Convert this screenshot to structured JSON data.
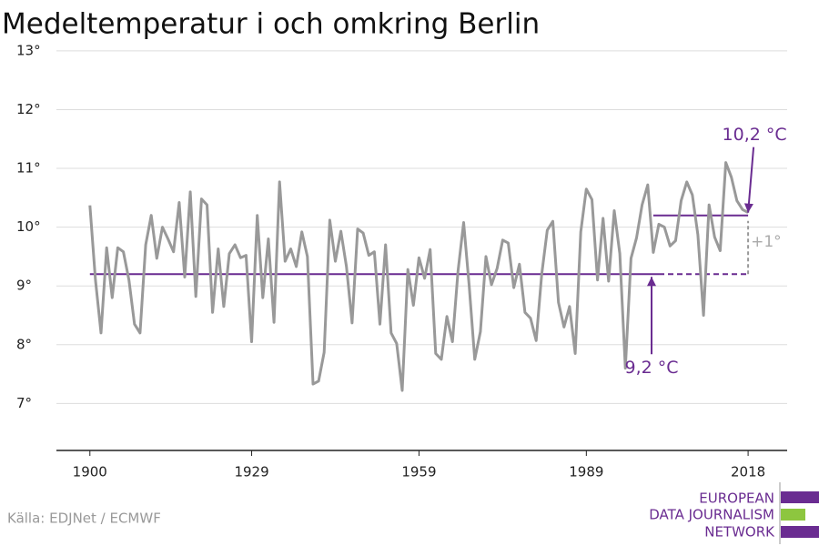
{
  "chart_data": {
    "type": "line",
    "title": "Medeltemperatur i och omkring Berlin",
    "source": "Källa: EDJNet / ECMWF",
    "logo": [
      "EUROPEAN",
      "DATA JOURNALISM",
      "NETWORK"
    ],
    "xlim": [
      1894,
      2025
    ],
    "ylim": [
      6.2,
      13.2
    ],
    "xticks": [
      1900,
      1929,
      1959,
      1989,
      2018
    ],
    "yticks": [
      {
        "value": 7,
        "label": "7°"
      },
      {
        "value": 8,
        "label": "8°"
      },
      {
        "value": 9,
        "label": "9°"
      },
      {
        "value": 10,
        "label": "10°"
      },
      {
        "value": 11,
        "label": "11°"
      },
      {
        "value": 12,
        "label": "12°"
      },
      {
        "value": 13,
        "label": "13°"
      }
    ],
    "grid": true,
    "x": [
      1900,
      1901,
      1902,
      1903,
      1904,
      1905,
      1906,
      1907,
      1908,
      1909,
      1910,
      1911,
      1912,
      1913,
      1914,
      1915,
      1916,
      1917,
      1918,
      1919,
      1920,
      1921,
      1922,
      1923,
      1924,
      1925,
      1926,
      1927,
      1928,
      1929,
      1930,
      1931,
      1932,
      1933,
      1934,
      1935,
      1936,
      1937,
      1938,
      1939,
      1940,
      1941,
      1942,
      1943,
      1944,
      1945,
      1946,
      1947,
      1948,
      1949,
      1950,
      1951,
      1952,
      1953,
      1954,
      1955,
      1956,
      1957,
      1958,
      1959,
      1960,
      1961,
      1962,
      1963,
      1964,
      1965,
      1966,
      1967,
      1968,
      1969,
      1970,
      1971,
      1972,
      1973,
      1974,
      1975,
      1976,
      1977,
      1978,
      1979,
      1980,
      1981,
      1982,
      1983,
      1984,
      1985,
      1986,
      1987,
      1988,
      1989,
      1990,
      1991,
      1992,
      1993,
      1994,
      1995,
      1996,
      1997,
      1998,
      1999,
      2000,
      2001,
      2002,
      2003,
      2004,
      2005,
      2006,
      2007,
      2008,
      2009,
      2010,
      2011,
      2012,
      2013,
      2014,
      2015,
      2016,
      2017,
      2018
    ],
    "series": [
      {
        "color": "#999999",
        "values": [
          10.37,
          9.1,
          8.2,
          9.65,
          8.8,
          9.65,
          9.58,
          9.1,
          8.35,
          8.2,
          9.7,
          10.2,
          9.47,
          10.0,
          9.8,
          9.58,
          10.42,
          9.15,
          10.6,
          8.82,
          10.48,
          10.38,
          8.55,
          9.63,
          8.65,
          9.55,
          9.7,
          9.48,
          9.52,
          8.05,
          10.2,
          8.8,
          9.8,
          8.38,
          10.77,
          9.42,
          9.63,
          9.33,
          9.92,
          9.5,
          7.33,
          7.38,
          7.87,
          10.12,
          9.42,
          9.93,
          9.33,
          8.37,
          9.97,
          9.9,
          9.52,
          9.58,
          8.35,
          9.7,
          8.2,
          8.02,
          7.22,
          9.28,
          8.67,
          9.48,
          9.13,
          9.62,
          7.85,
          7.75,
          8.48,
          8.05,
          9.25,
          10.08,
          9.0,
          7.75,
          8.22,
          9.5,
          9.02,
          9.3,
          9.78,
          9.73,
          8.97,
          9.37,
          8.55,
          8.45,
          8.07,
          9.2,
          9.95,
          10.1,
          8.72,
          8.3,
          8.65,
          7.85,
          9.92,
          10.65,
          10.47,
          9.1,
          10.15,
          9.08,
          10.28,
          9.55,
          7.6,
          9.47,
          9.82,
          10.38,
          10.72,
          9.57,
          10.05,
          10.0,
          9.68,
          9.77,
          10.45,
          10.77,
          10.55,
          9.87,
          8.5,
          10.38,
          9.83,
          9.6,
          11.1,
          10.85,
          10.45,
          10.3,
          10.25
        ]
      }
    ],
    "reference_lines": [
      {
        "value": 9.2,
        "start": 1900,
        "end": 2002,
        "dashed_to": 2018,
        "label": "9,2 °C",
        "color": "#6a2c91"
      },
      {
        "value": 10.2,
        "start": 2001,
        "end": 2018,
        "label": "10,2 °C",
        "color": "#6a2c91"
      }
    ],
    "difference_label": "+1°"
  }
}
